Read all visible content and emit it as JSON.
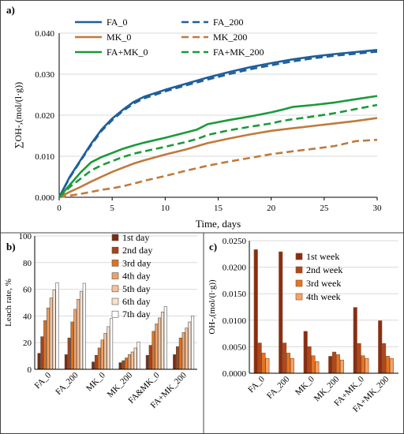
{
  "colors": {
    "blue": "#1f5f9b",
    "brown": "#c07a3c",
    "green": "#1a9a3a",
    "day_shades": [
      "#7a2a12",
      "#a84215",
      "#e2711e",
      "#f2a163",
      "#f6c19a",
      "#fbe1cc",
      "#ffffff"
    ],
    "week_shades": [
      "#8a2d12",
      "#b0481a",
      "#e5751f",
      "#f4a466"
    ]
  },
  "chart_data": [
    {
      "panel": "a)",
      "type": "line",
      "xlabel": "Time, days",
      "ylabel": "∑OH-,(mol/(l·g))",
      "xlim": [
        0,
        30
      ],
      "ylim": [
        0,
        0.04
      ],
      "xticks": [
        "0",
        "5",
        "10",
        "15",
        "20",
        "25",
        "30"
      ],
      "yticks": [
        "0.000",
        "0.010",
        "0.020",
        "0.030",
        "0.040"
      ],
      "legend_position": "top-left",
      "series": [
        {
          "name": "FA_0",
          "color": "#1f5f9b",
          "dashed": false,
          "x": [
            0,
            1,
            2,
            3,
            4,
            5,
            6,
            7,
            8,
            10,
            12,
            14,
            16,
            18,
            20,
            22,
            24,
            26,
            28,
            30
          ],
          "y": [
            0,
            0.005,
            0.009,
            0.013,
            0.0165,
            0.0192,
            0.0213,
            0.0232,
            0.0245,
            0.0262,
            0.0277,
            0.0292,
            0.0305,
            0.0317,
            0.0327,
            0.0336,
            0.0343,
            0.0349,
            0.0354,
            0.0359
          ]
        },
        {
          "name": "FA_200",
          "color": "#1f5f9b",
          "dashed": true,
          "x": [
            0,
            1,
            2,
            3,
            4,
            5,
            6,
            7,
            8,
            10,
            12,
            14,
            16,
            18,
            20,
            22,
            24,
            26,
            28,
            30
          ],
          "y": [
            0,
            0.0048,
            0.0088,
            0.0127,
            0.0162,
            0.0188,
            0.021,
            0.0228,
            0.0241,
            0.0258,
            0.0273,
            0.0287,
            0.03,
            0.0312,
            0.0322,
            0.0331,
            0.0339,
            0.0345,
            0.035,
            0.0355
          ]
        },
        {
          "name": "MK_0",
          "color": "#c07a3c",
          "dashed": false,
          "x": [
            0,
            1,
            2,
            3,
            4,
            5,
            6,
            7,
            8,
            10,
            12,
            14,
            16,
            18,
            20,
            22,
            24,
            26,
            28,
            30
          ],
          "y": [
            0,
            0.0013,
            0.0025,
            0.0038,
            0.005,
            0.0062,
            0.0072,
            0.0082,
            0.009,
            0.0104,
            0.0117,
            0.0132,
            0.0143,
            0.0153,
            0.0162,
            0.0168,
            0.0174,
            0.018,
            0.0186,
            0.0193
          ]
        },
        {
          "name": "MK_200",
          "color": "#c07a3c",
          "dashed": true,
          "x": [
            0,
            1,
            2,
            3,
            4,
            5,
            6,
            7,
            8,
            10,
            12,
            14,
            16,
            18,
            20,
            22,
            24,
            26,
            28,
            30
          ],
          "y": [
            0,
            0.0004,
            0.0008,
            0.0013,
            0.0018,
            0.0022,
            0.0027,
            0.0033,
            0.004,
            0.0052,
            0.0065,
            0.0077,
            0.0087,
            0.0096,
            0.0105,
            0.0112,
            0.0118,
            0.0125,
            0.0137,
            0.014
          ]
        },
        {
          "name": "FA+MK_0",
          "color": "#1a9a3a",
          "dashed": false,
          "x": [
            0,
            1,
            2,
            3,
            4,
            5,
            6,
            7,
            8,
            10,
            12,
            13,
            14,
            16,
            18,
            20,
            21,
            22,
            24,
            26,
            28,
            30
          ],
          "y": [
            0,
            0.003,
            0.006,
            0.0085,
            0.0098,
            0.0108,
            0.0118,
            0.0126,
            0.0133,
            0.0145,
            0.0158,
            0.0165,
            0.0178,
            0.0188,
            0.0197,
            0.0207,
            0.0213,
            0.022,
            0.0225,
            0.0231,
            0.0239,
            0.0247
          ]
        },
        {
          "name": "FA+MK_200",
          "color": "#1a9a3a",
          "dashed": true,
          "x": [
            0,
            1,
            2,
            3,
            4,
            5,
            6,
            7,
            8,
            10,
            12,
            13,
            14,
            16,
            18,
            20,
            21,
            22,
            24,
            26,
            28,
            30
          ],
          "y": [
            0,
            0.0025,
            0.0045,
            0.0065,
            0.0078,
            0.0088,
            0.0098,
            0.0106,
            0.0112,
            0.0123,
            0.0135,
            0.0142,
            0.0152,
            0.0163,
            0.0172,
            0.018,
            0.0186,
            0.019,
            0.0197,
            0.0205,
            0.0215,
            0.0225
          ]
        }
      ]
    },
    {
      "panel": "b)",
      "type": "bar",
      "ylabel": "Leach rate, %",
      "ylim": [
        0,
        100
      ],
      "yticks": [
        "0",
        "20",
        "40",
        "60",
        "80",
        "100"
      ],
      "categories": [
        "FA_0",
        "FA_200",
        "MK_0",
        "MK_200",
        "FA&MK_0",
        "FA+MK_200"
      ],
      "legend_position": "top-left",
      "series": [
        {
          "name": "1st day",
          "values": [
            12,
            11,
            5.5,
            5,
            10.5,
            11
          ]
        },
        {
          "name": "2nd day",
          "values": [
            24.5,
            23.5,
            10.5,
            6.5,
            18,
            17
          ]
        },
        {
          "name": "3rd day",
          "values": [
            36.5,
            35.5,
            16,
            8.5,
            28.5,
            23.5
          ]
        },
        {
          "name": "4th day",
          "values": [
            46,
            45,
            22,
            11,
            34,
            27.5
          ]
        },
        {
          "name": "5th day",
          "values": [
            53.5,
            52.5,
            27,
            13,
            38.5,
            31
          ]
        },
        {
          "name": "6th day",
          "values": [
            59.5,
            58.5,
            32,
            16,
            43,
            35.5
          ]
        },
        {
          "name": "7th day",
          "values": [
            65,
            64.5,
            38,
            20.5,
            47,
            40
          ]
        }
      ]
    },
    {
      "panel": "c)",
      "type": "bar",
      "ylabel": "OH-,(mol/(l·g))",
      "ylim": [
        0,
        0.025
      ],
      "yticks": [
        "0.0000",
        "0.0050",
        "0.0100",
        "0.0150",
        "0.0200",
        "0.0250"
      ],
      "categories": [
        "FA_0",
        "FA_200",
        "MK_0",
        "MK_200",
        "FA+MK_0",
        "FA+MK_200"
      ],
      "legend_position": "top-right",
      "series": [
        {
          "name": "1st week",
          "values": [
            0.0233,
            0.0229,
            0.0079,
            0.0032,
            0.0124,
            0.0099
          ]
        },
        {
          "name": "2nd week",
          "values": [
            0.0057,
            0.0057,
            0.005,
            0.004,
            0.0056,
            0.0056
          ]
        },
        {
          "name": "3rd week",
          "values": [
            0.0038,
            0.0038,
            0.0033,
            0.0035,
            0.0033,
            0.0032
          ]
        },
        {
          "name": "4th week",
          "values": [
            0.0028,
            0.0028,
            0.0022,
            0.0025,
            0.0028,
            0.0028
          ]
        }
      ]
    }
  ]
}
